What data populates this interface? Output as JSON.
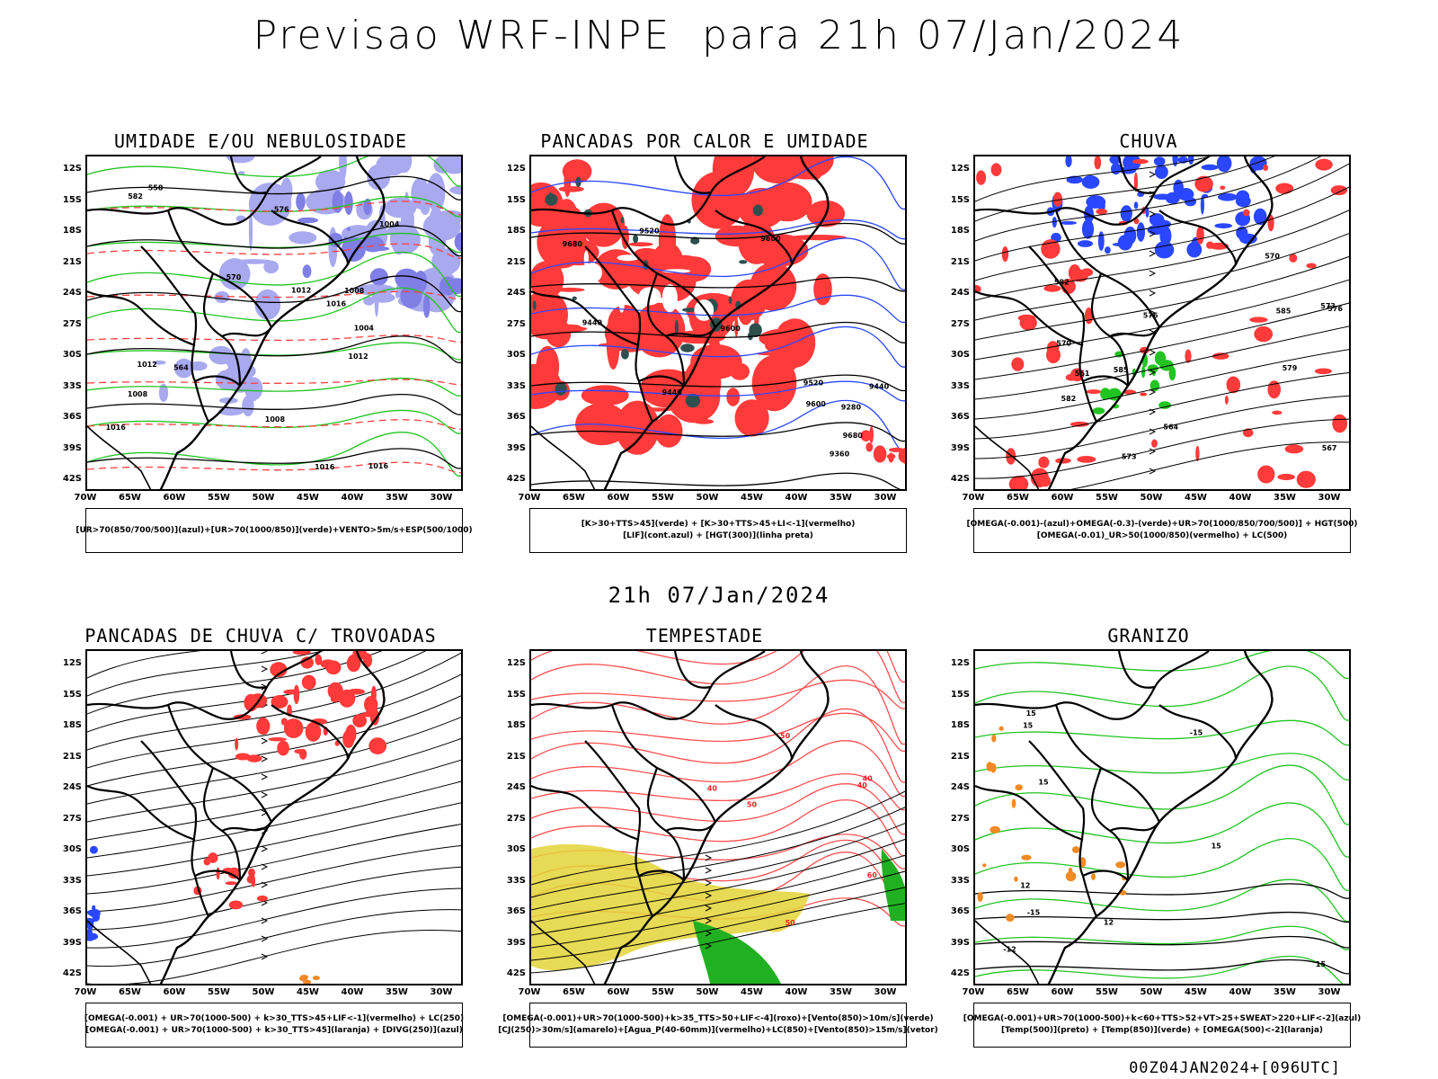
{
  "page_title": "Previsao WRF-INPE  para 21h 07/Jan/2024",
  "mid_title": "21h 07/Jan/2024",
  "footer": "00Z04JAN2024+[096UTC]",
  "axes": {
    "y_ticks": [
      "12S",
      "15S",
      "18S",
      "21S",
      "24S",
      "27S",
      "30S",
      "33S",
      "36S",
      "39S",
      "42S"
    ],
    "x_ticks": [
      "70W",
      "65W",
      "60W",
      "55W",
      "50W",
      "45W",
      "40W",
      "35W",
      "30W"
    ]
  },
  "colors": {
    "humidity_blue": "#a9a9ef",
    "humidity_blue_dark": "#7f7fe6",
    "green_contour": "#22c422",
    "red": "#ff3a3a",
    "dark_teal": "#2f4f4f",
    "blue_contour": "#2a47ff",
    "yellow": "#e3d437",
    "orange": "#f08a24"
  },
  "panels": [
    {
      "title": "UMIDADE E/OU NEBULOSIDADE",
      "legend": [
        "[UR>70(850/700/500)](azul)+[UR>70(1000/850)](verde)+VENTO>5m/s+ESP(500/1000)"
      ],
      "map_labels": [
        "1012",
        "1008",
        "1004",
        "1008",
        "1016",
        "1016",
        "1012",
        "1004",
        "1008",
        "1016",
        "1012",
        "576",
        "582",
        "570",
        "564",
        "558",
        "1016"
      ]
    },
    {
      "title": "PANCADAS POR CALOR E UMIDADE",
      "legend": [
        "[K>30+TTS>45](verde) + [K>30+TTS>45+LI<-1](vermelho)",
        "[LIF](cont.azul) + [HGT(300)](linha preta)"
      ],
      "map_labels": [
        "9680",
        "9680",
        "9600",
        "9600",
        "9520",
        "9520",
        "9440",
        "9440",
        "9360",
        "9280",
        "9440",
        "9600"
      ]
    },
    {
      "title": "CHUVA",
      "legend": [
        "[OMEGA(-0.001)-(azul)+OMEGA(-0.3)-(verde)+UR>70(1000/850/700/500)] + HGT(500)",
        "[OMEGA(-0.01)_UR>50(1000/850)(vermelho) + LC(500)"
      ],
      "map_labels": [
        "585",
        "582",
        "579",
        "576",
        "573",
        "570",
        "567",
        "564",
        "561",
        "585",
        "582",
        "576",
        "573",
        "570"
      ]
    },
    {
      "title": "PANCADAS DE CHUVA C/ TROVOADAS",
      "legend": [
        "[OMEGA(-0.001) + UR>70(1000-500) + k>30_TTS>45+LIF<-1](vermelho) + LC(250)",
        "[OMEGA(-0.001) + UR>70(1000-500) + k>30_TTS>45](laranja) + [DIVG(250)](azul)"
      ],
      "map_labels": []
    },
    {
      "title": "TEMPESTADE",
      "legend": [
        "[OMEGA(-0.001)+UR>70(1000-500)+k>35_TTS>50+LIF<-4](roxo)+[Vento(850)>10m/s](verde)",
        "[CJ(250)>30m/s](amarelo)+[Agua_P(40-60mm)](vermelho)+LC(850)+[Vento(850)>15m/s](vetor)"
      ],
      "map_labels": [
        "40",
        "50",
        "40",
        "50",
        "60",
        "40",
        "50"
      ]
    },
    {
      "title": "GRANIZO",
      "legend": [
        "[OMEGA(-0.001)+UR>70(1000-500)+k<60+TTS>52+VT>25+SWEAT>220+LIF<-2](azul)",
        "[Temp(500)](preto) + [Temp(850)](verde) + [OMEGA(500)<-2](laranja)"
      ],
      "map_labels": [
        "15",
        "15",
        "15",
        "15",
        "-12",
        "-15",
        "-15",
        "12",
        "15",
        "12"
      ]
    }
  ]
}
